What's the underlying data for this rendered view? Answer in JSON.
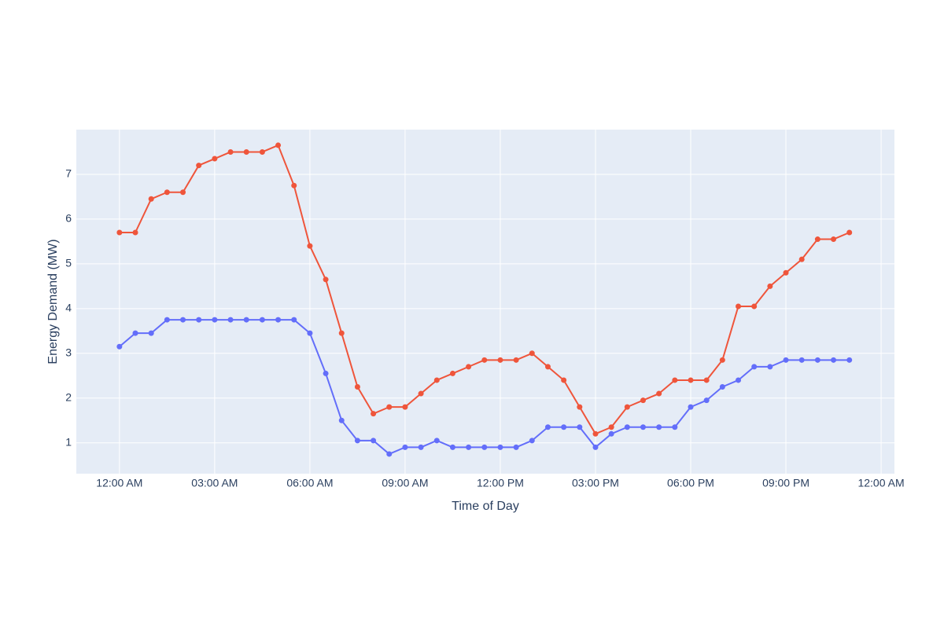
{
  "chart_data": {
    "type": "line",
    "x_label": "Time of Day",
    "y_label": "Energy Demand (MW)",
    "x": [
      0,
      0.5,
      1,
      1.5,
      2,
      2.5,
      3,
      3.5,
      4,
      4.5,
      5,
      5.5,
      6,
      6.5,
      7,
      7.5,
      8,
      8.5,
      9,
      9.5,
      10,
      10.5,
      11,
      11.5,
      12,
      12.5,
      13,
      13.5,
      14,
      14.5,
      15,
      15.5,
      16,
      16.5,
      17,
      17.5,
      18,
      18.5,
      19,
      19.5,
      20,
      20.5,
      21,
      21.5,
      22,
      22.5,
      23
    ],
    "series": [
      {
        "color": "#636efa",
        "values": [
          3.15,
          3.45,
          3.45,
          3.75,
          3.75,
          3.75,
          3.75,
          3.75,
          3.75,
          3.75,
          3.75,
          3.75,
          3.45,
          2.55,
          1.5,
          1.05,
          1.05,
          0.75,
          0.9,
          0.9,
          1.05,
          0.9,
          0.9,
          0.9,
          0.9,
          0.9,
          1.05,
          1.35,
          1.35,
          1.35,
          0.9,
          1.2,
          1.35,
          1.35,
          1.35,
          1.35,
          1.8,
          1.95,
          2.25,
          2.4,
          2.7,
          2.7,
          2.85,
          2.85,
          2.85,
          2.85,
          2.85
        ]
      },
      {
        "color": "#ef553b",
        "values": [
          5.7,
          5.7,
          6.45,
          6.6,
          6.6,
          7.2,
          7.35,
          7.5,
          7.5,
          7.5,
          7.65,
          6.75,
          5.4,
          4.65,
          3.45,
          2.25,
          1.65,
          1.8,
          1.8,
          2.1,
          2.4,
          2.55,
          2.7,
          2.85,
          2.85,
          2.85,
          3.0,
          2.7,
          2.4,
          1.8,
          1.2,
          1.35,
          1.8,
          1.95,
          2.1,
          2.4,
          2.4,
          2.4,
          2.85,
          4.05,
          4.05,
          4.5,
          4.8,
          5.1,
          5.55,
          5.55,
          5.7
        ]
      }
    ],
    "xlim": [
      -1.36,
      24.42
    ],
    "ylim": [
      0.31,
      8.0
    ],
    "xticks": [
      {
        "value": 0,
        "label": "12:00 AM"
      },
      {
        "value": 3,
        "label": "03:00 AM"
      },
      {
        "value": 6,
        "label": "06:00 AM"
      },
      {
        "value": 9,
        "label": "09:00 AM"
      },
      {
        "value": 12,
        "label": "12:00 PM"
      },
      {
        "value": 15,
        "label": "03:00 PM"
      },
      {
        "value": 18,
        "label": "06:00 PM"
      },
      {
        "value": 21,
        "label": "09:00 PM"
      },
      {
        "value": 24,
        "label": "12:00 AM"
      }
    ],
    "yticks": [
      1,
      2,
      3,
      4,
      5,
      6,
      7
    ],
    "grid": true,
    "plot_background": "#e5ecf6"
  }
}
